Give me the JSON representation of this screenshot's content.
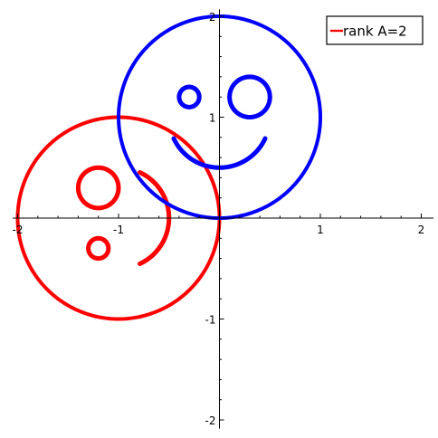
{
  "chart_data": {
    "type": "scatter",
    "title": "",
    "xlabel": "",
    "ylabel": "",
    "xlim": [
      -2.05,
      2.05
    ],
    "ylim": [
      -2.05,
      2.05
    ],
    "xticks": [
      -2,
      -1,
      1,
      2
    ],
    "yticks": [
      -2,
      -1,
      1,
      2
    ],
    "grid": false,
    "axes_style": "cross-at-origin",
    "legend": {
      "placement": "top-right",
      "entries": [
        "rank A=2"
      ]
    },
    "series": [
      {
        "name": "rank A=2",
        "color": "#ff0000",
        "marker": "dots",
        "shapes": [
          {
            "kind": "circle",
            "cx": -1.0,
            "cy": 0.0,
            "r": 1.0
          },
          {
            "kind": "circle",
            "cx": -1.2,
            "cy": 0.3,
            "r": 0.2
          },
          {
            "kind": "circle",
            "cx": -1.2,
            "cy": -0.3,
            "r": 0.1
          },
          {
            "kind": "arc",
            "cx": -1.0,
            "cy": 0.0,
            "r": 0.5,
            "start_deg": -65,
            "end_deg": 65
          }
        ]
      },
      {
        "name": "",
        "color": "#0000ff",
        "marker": "dots",
        "shapes": [
          {
            "kind": "circle",
            "cx": 0.0,
            "cy": 1.0,
            "r": 1.0
          },
          {
            "kind": "circle",
            "cx": 0.3,
            "cy": 1.2,
            "r": 0.2
          },
          {
            "kind": "circle",
            "cx": -0.3,
            "cy": 1.2,
            "r": 0.1
          },
          {
            "kind": "arc",
            "cx": 0.0,
            "cy": 1.0,
            "r": 0.5,
            "start_deg": -155,
            "end_deg": -25
          }
        ]
      }
    ]
  }
}
